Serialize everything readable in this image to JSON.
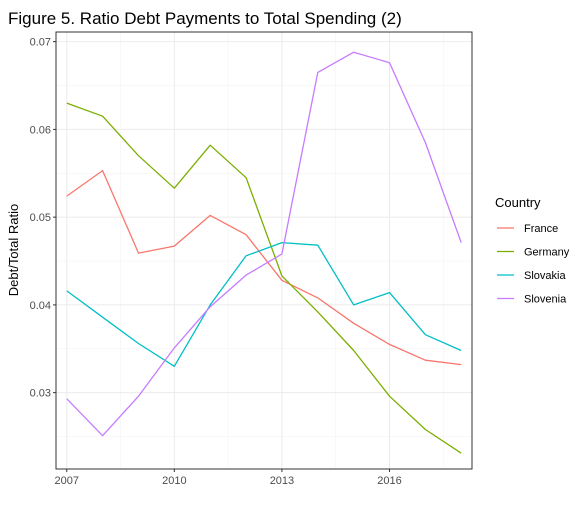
{
  "chart_data": {
    "type": "line",
    "title": "Figure 5. Ratio Debt Payments to Total Spending (2)",
    "xlabel": "",
    "ylabel": "Debt/Total Ratio",
    "x": [
      2007,
      2008,
      2009,
      2010,
      2011,
      2012,
      2013,
      2014,
      2015,
      2016,
      2017,
      2018
    ],
    "xlim": [
      2006.7,
      2018.3
    ],
    "ylim": [
      0.0213,
      0.0711
    ],
    "xticks": [
      "2007",
      "2010",
      "2013",
      "2016"
    ],
    "yticks": [
      "0.03",
      "0.04",
      "0.05",
      "0.06",
      "0.07"
    ],
    "grid": true,
    "legend_title": "Country",
    "legend_position": "right",
    "series": [
      {
        "name": "France",
        "color": "#F8766D",
        "values": [
          0.0524,
          0.0553,
          0.0459,
          0.0467,
          0.0502,
          0.048,
          0.0428,
          0.0408,
          0.0379,
          0.0355,
          0.0337,
          0.0332
        ]
      },
      {
        "name": "Germany",
        "color": "#7CAE00",
        "values": [
          0.063,
          0.0615,
          0.057,
          0.0533,
          0.0582,
          0.0545,
          0.0433,
          0.0392,
          0.0348,
          0.0296,
          0.0258,
          0.0231
        ]
      },
      {
        "name": "Slovakia",
        "color": "#00BFC4",
        "values": [
          0.0416,
          0.0386,
          0.0356,
          0.033,
          0.04,
          0.0456,
          0.0471,
          0.0468,
          0.04,
          0.0414,
          0.0366,
          0.0348
        ]
      },
      {
        "name": "Slovenia",
        "color": "#C77CFF",
        "values": [
          0.0293,
          0.0251,
          0.0296,
          0.0351,
          0.0398,
          0.0434,
          0.0458,
          0.0665,
          0.0688,
          0.0676,
          0.0585,
          0.0471
        ]
      }
    ]
  }
}
